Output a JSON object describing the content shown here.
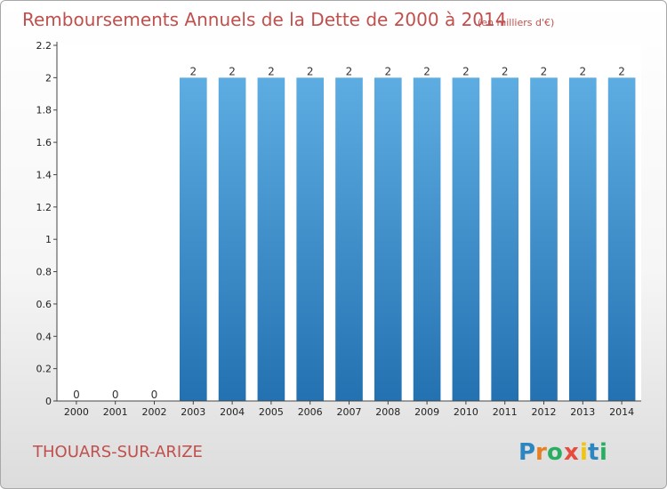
{
  "chart_data": {
    "type": "bar",
    "title": "Remboursements Annuels de la Dette de 2000 à 2014",
    "subtitle": "(en milliers d'€)",
    "categories": [
      "2000",
      "2001",
      "2002",
      "2003",
      "2004",
      "2005",
      "2006",
      "2007",
      "2008",
      "2009",
      "2010",
      "2011",
      "2012",
      "2013",
      "2014"
    ],
    "values": [
      0,
      0,
      0,
      2,
      2,
      2,
      2,
      2,
      2,
      2,
      2,
      2,
      2,
      2,
      2
    ],
    "data_labels": [
      "0",
      "0",
      "0",
      "2",
      "2",
      "2",
      "2",
      "2",
      "2",
      "2",
      "2",
      "2",
      "2",
      "2",
      "2"
    ],
    "ylim": [
      0,
      2.2
    ],
    "yticks": [
      0,
      0.2,
      0.4,
      0.6,
      0.8,
      1,
      1.2,
      1.4,
      1.6,
      1.8,
      2,
      2.2
    ],
    "ytick_labels": [
      "0",
      "0.2",
      "0.4",
      "0.6",
      "0.8",
      "1",
      "1.2",
      "1.4",
      "1.6",
      "1.8",
      "2",
      "2.2"
    ],
    "xlabel": "",
    "ylabel": "",
    "grid": false,
    "bar_color_top": "#5dade2",
    "bar_color_bottom": "#2471b1"
  },
  "footer": {
    "commune": "THOUARS-SUR-ARIZE",
    "logo_text": "Proxiti"
  }
}
